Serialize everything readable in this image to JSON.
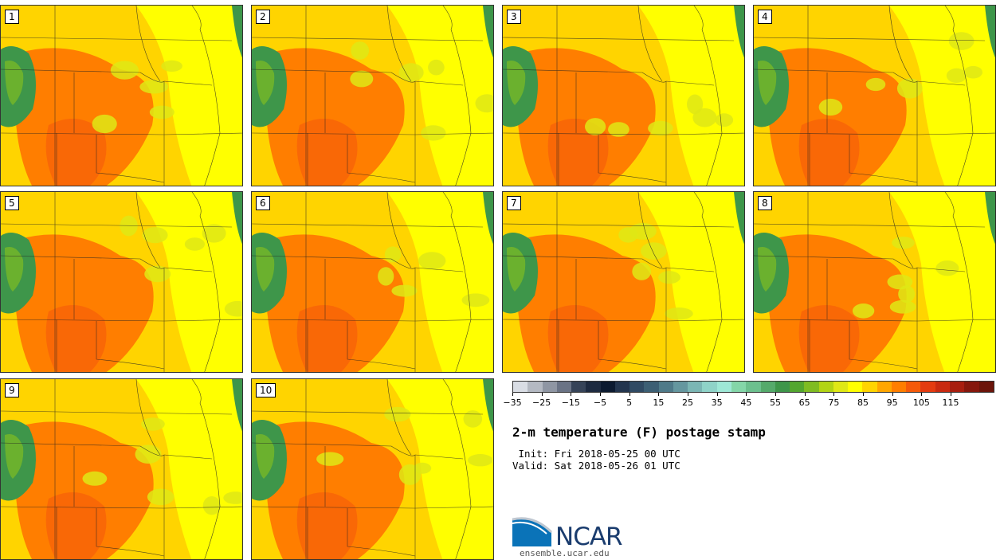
{
  "panels": [
    {
      "label": "1"
    },
    {
      "label": "2"
    },
    {
      "label": "3"
    },
    {
      "label": "4"
    },
    {
      "label": "5"
    },
    {
      "label": "6"
    },
    {
      "label": "7"
    },
    {
      "label": "8"
    },
    {
      "label": "9"
    },
    {
      "label": "10"
    }
  ],
  "colorbar": {
    "colors": [
      "#d9dde4",
      "#b4b9c2",
      "#8f96a3",
      "#6a7385",
      "#364358",
      "#1d2a40",
      "#0c1a30",
      "#23354e",
      "#2f4a63",
      "#3c5f74",
      "#4f7a89",
      "#65979f",
      "#7bb6b4",
      "#8fd3c8",
      "#9ee8d6",
      "#84d6a8",
      "#6cc08e",
      "#55aa6b",
      "#3e964a",
      "#53a62f",
      "#7fbc22",
      "#b2d414",
      "#dfe815",
      "#ffff00",
      "#ffd400",
      "#ffa600",
      "#ff7e00",
      "#f55a0a",
      "#e43b10",
      "#c92a10",
      "#a81e0f",
      "#86170c",
      "#6b140a"
    ],
    "ticks": [
      "−35",
      "−25",
      "−15",
      "−5",
      "5",
      "15",
      "25",
      "35",
      "45",
      "55",
      "65",
      "75",
      "85",
      "95",
      "105",
      "115"
    ],
    "min": -35,
    "step": 5
  },
  "title": "2-m temperature (F) postage stamp",
  "init": " Init: Fri 2018-05-25 00 UTC",
  "valid": "Valid: Sat 2018-05-26 01 UTC",
  "logo": {
    "text": "NCAR",
    "url": "ensemble.ucar.edu"
  },
  "colors": {
    "cool": "#dfe815",
    "warm": "#ffd400",
    "hot": "#ff7e00",
    "hotter": "#f55a0a",
    "mountain": "#3e964a",
    "border": "#222222"
  }
}
